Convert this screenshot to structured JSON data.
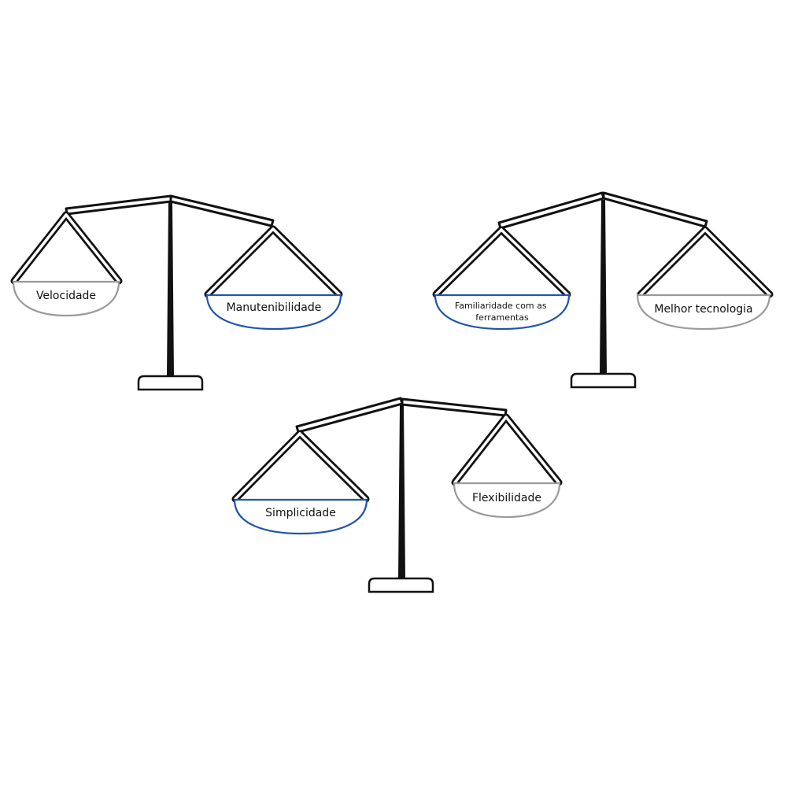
{
  "colors": {
    "heavy_pan": "#2255aa",
    "light_pan": "#9a9a9a",
    "ink": "#111111"
  },
  "scales": [
    {
      "left_pan": {
        "label_lines": [
          "Velocidade"
        ],
        "tone": "light"
      },
      "right_pan": {
        "label_lines": [
          "Manutenibilidade"
        ],
        "tone": "heavy"
      },
      "heavier_side": "right"
    },
    {
      "left_pan": {
        "label_lines": [
          "Familiaridade com as",
          "ferramentas"
        ],
        "tone": "heavy"
      },
      "right_pan": {
        "label_lines": [
          "Melhor tecnologia"
        ],
        "tone": "light"
      },
      "heavier_side": "left"
    },
    {
      "left_pan": {
        "label_lines": [
          "Simplicidade"
        ],
        "tone": "heavy"
      },
      "right_pan": {
        "label_lines": [
          "Flexibilidade"
        ],
        "tone": "light"
      },
      "heavier_side": "left"
    }
  ]
}
